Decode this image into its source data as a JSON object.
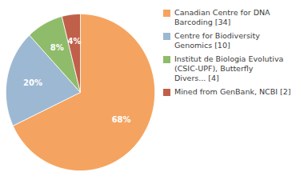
{
  "chart_data": {
    "type": "pie",
    "categories": [
      "Canadian Centre for DNA\nBarcoding [34]",
      "Centre for Biodiversity\nGenomics [10]",
      "Institut de Biologia Evolutiva\n(CSIC-UPF), Butterfly\nDivers... [4]",
      "Mined from GenBank, NCBI [2]"
    ],
    "values": [
      68,
      20,
      8,
      4
    ],
    "value_labels": [
      "68%",
      "20%",
      "8%",
      "4%"
    ],
    "colors": [
      "#F4A460",
      "#9DB8D2",
      "#8FBC6A",
      "#C0604A"
    ],
    "data_labels": true,
    "legend": "right"
  }
}
